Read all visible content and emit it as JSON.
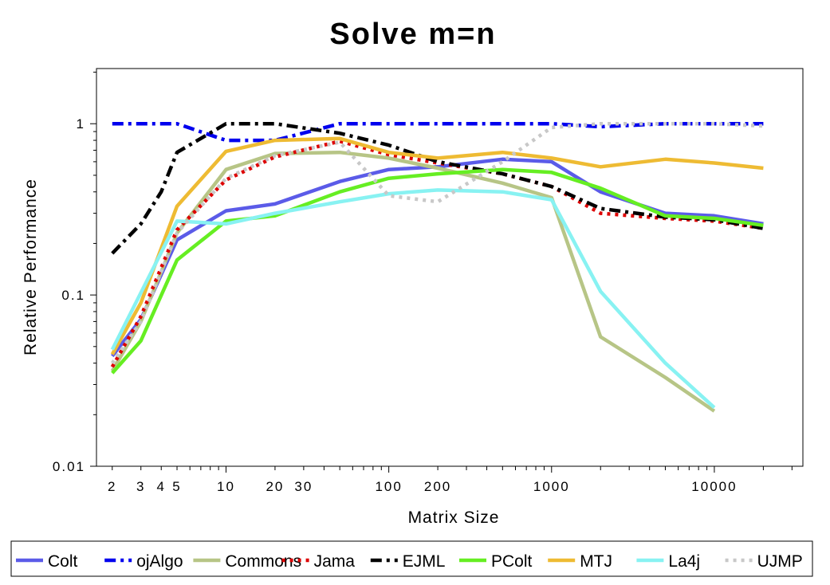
{
  "chart_data": {
    "type": "line",
    "title": "Solve m=n",
    "xlabel": "Matrix Size",
    "ylabel": "Relative Performance",
    "xscale": "log",
    "yscale": "log",
    "xlim": [
      1.6,
      35000
    ],
    "ylim": [
      0.01,
      2.1
    ],
    "xticks": [
      2,
      3,
      4,
      5,
      10,
      20,
      30,
      100,
      200,
      1000,
      10000
    ],
    "xtick_labels": [
      "2",
      "3",
      "4",
      "5",
      "10",
      "20",
      "30",
      "100",
      "200",
      "1000",
      "10000"
    ],
    "yticks": [
      0.01,
      0.1,
      1
    ],
    "ytick_labels": [
      "0.01",
      "0.1",
      "1"
    ],
    "grid": false,
    "legend_position": "bottom",
    "series": [
      {
        "name": "Colt",
        "color": "#5b5be8",
        "dash": "solid",
        "x": [
          2,
          3,
          5,
          10,
          20,
          50,
          100,
          200,
          500,
          1000,
          2000,
          5000,
          10000,
          20000
        ],
        "y": [
          0.044,
          0.072,
          0.21,
          0.31,
          0.34,
          0.46,
          0.54,
          0.56,
          0.62,
          0.6,
          0.4,
          0.3,
          0.29,
          0.26
        ]
      },
      {
        "name": "ojAlgo",
        "color": "#0000ee",
        "dash": "dashdot",
        "x": [
          2,
          3,
          5,
          10,
          20,
          50,
          100,
          200,
          500,
          1000,
          2000,
          5000,
          10000,
          20000
        ],
        "y": [
          1,
          1,
          1,
          0.8,
          0.8,
          1,
          1,
          1,
          1,
          1,
          0.96,
          1,
          1,
          1
        ]
      },
      {
        "name": "Commons",
        "color": "#b7c586",
        "dash": "solid",
        "x": [
          2,
          3,
          5,
          10,
          20,
          50,
          100,
          200,
          500,
          1000,
          2000,
          5000,
          10000
        ],
        "y": [
          0.036,
          0.07,
          0.23,
          0.54,
          0.67,
          0.68,
          0.63,
          0.55,
          0.45,
          0.37,
          0.057,
          0.033,
          0.021
        ]
      },
      {
        "name": "Jama",
        "color": "#dd0000",
        "dash": "dot",
        "x": [
          2,
          3,
          5,
          10,
          20,
          50,
          100,
          200,
          500,
          1000,
          2000,
          5000,
          10000,
          20000
        ],
        "y": [
          0.038,
          0.075,
          0.24,
          0.47,
          0.64,
          0.79,
          0.66,
          0.59,
          0.51,
          0.43,
          0.3,
          0.28,
          0.27,
          0.245
        ]
      },
      {
        "name": "EJML",
        "color": "#000000",
        "dash": "dashdot",
        "x": [
          2,
          3,
          4,
          5,
          10,
          20,
          50,
          100,
          200,
          500,
          1000,
          2000,
          5000,
          10000,
          20000
        ],
        "y": [
          0.175,
          0.26,
          0.4,
          0.68,
          1,
          1,
          0.88,
          0.75,
          0.6,
          0.51,
          0.43,
          0.32,
          0.285,
          0.275,
          0.245
        ]
      },
      {
        "name": "PColt",
        "color": "#66ee22",
        "dash": "solid",
        "x": [
          2,
          3,
          5,
          10,
          20,
          50,
          100,
          200,
          500,
          1000,
          2000,
          5000,
          10000,
          20000
        ],
        "y": [
          0.035,
          0.054,
          0.16,
          0.27,
          0.29,
          0.4,
          0.48,
          0.51,
          0.54,
          0.52,
          0.42,
          0.29,
          0.28,
          0.255
        ]
      },
      {
        "name": "MTJ",
        "color": "#eebb33",
        "dash": "solid",
        "x": [
          2,
          3,
          5,
          10,
          20,
          50,
          100,
          200,
          500,
          1000,
          2000,
          5000,
          10000,
          20000
        ],
        "y": [
          0.045,
          0.09,
          0.33,
          0.69,
          0.8,
          0.82,
          0.68,
          0.63,
          0.68,
          0.63,
          0.56,
          0.62,
          0.59,
          0.55
        ]
      },
      {
        "name": "La4j",
        "color": "#88f2f2",
        "dash": "solid",
        "x": [
          2,
          5,
          10,
          20,
          50,
          100,
          200,
          500,
          1000,
          2000,
          5000,
          10000
        ],
        "y": [
          0.048,
          0.27,
          0.26,
          0.3,
          0.35,
          0.39,
          0.41,
          0.4,
          0.36,
          0.105,
          0.04,
          0.022
        ]
      },
      {
        "name": "UJMP",
        "color": "#c8c8c8",
        "dash": "dot",
        "x": [
          2,
          3,
          5,
          10,
          20,
          50,
          100,
          200,
          500,
          1000,
          2000,
          5000,
          10000,
          20000
        ],
        "y": [
          0.04,
          0.07,
          0.23,
          0.48,
          0.65,
          0.78,
          0.38,
          0.35,
          0.6,
          0.95,
          1,
          1,
          1,
          0.97
        ]
      }
    ]
  }
}
